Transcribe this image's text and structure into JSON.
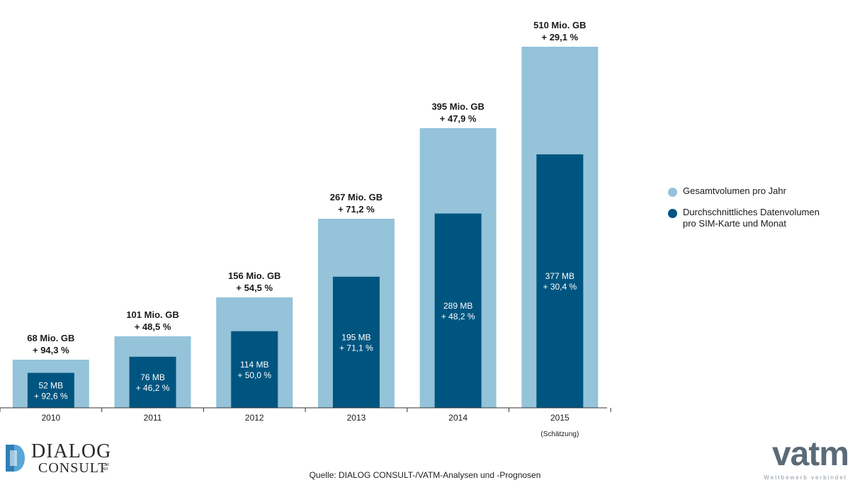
{
  "chart_data": {
    "type": "bar",
    "categories": [
      "2010",
      "2011",
      "2012",
      "2013",
      "2014",
      "2015"
    ],
    "category_notes": [
      "",
      "",
      "",
      "",
      "",
      "(Schätzung)"
    ],
    "series": [
      {
        "name": "Gesamtvolumen pro Jahr",
        "values": [
          68,
          101,
          156,
          267,
          395,
          510
        ],
        "unit": "Mio. GB",
        "labels": [
          "68 Mio. GB",
          "101 Mio. GB",
          "156 Mio. GB",
          "267 Mio. GB",
          "395 Mio. GB",
          "510 Mio. GB"
        ],
        "growth": [
          "+ 94,3 %",
          "+ 48,5 %",
          "+ 54,5 %",
          "+ 71,2 %",
          "+ 47,9 %",
          "+ 29,1 %"
        ],
        "color": "#94c3da"
      },
      {
        "name": "Durchschnittliches Datenvolumen\npro SIM-Karte und Monat",
        "values": [
          52,
          76,
          114,
          195,
          289,
          377
        ],
        "unit": "MB",
        "labels": [
          "52 MB",
          "76 MB",
          "114 MB",
          "195 MB",
          "289 MB",
          "377 MB"
        ],
        "growth": [
          "+ 92,6 %",
          "+ 46,2 %",
          "+ 50,0 %",
          "+ 71,1 %",
          "+ 48,2 %",
          "+ 30,4 %"
        ],
        "color": "#005580"
      }
    ],
    "grid": false,
    "legend": "right"
  },
  "source": "Quelle: DIALOG CONSULT-/VATM-Analysen und -Prognosen",
  "logos": {
    "dialog": {
      "line1": "DIALOG",
      "line2": "CONSULT",
      "suffix": "GM\nBH"
    },
    "vatm": {
      "word": "vatm",
      "tagline": "Wettbewerb verbindet"
    }
  },
  "colors": {
    "axis": "#333333",
    "label_dark": "#1a1a1a",
    "label_light": "#ffffff"
  }
}
